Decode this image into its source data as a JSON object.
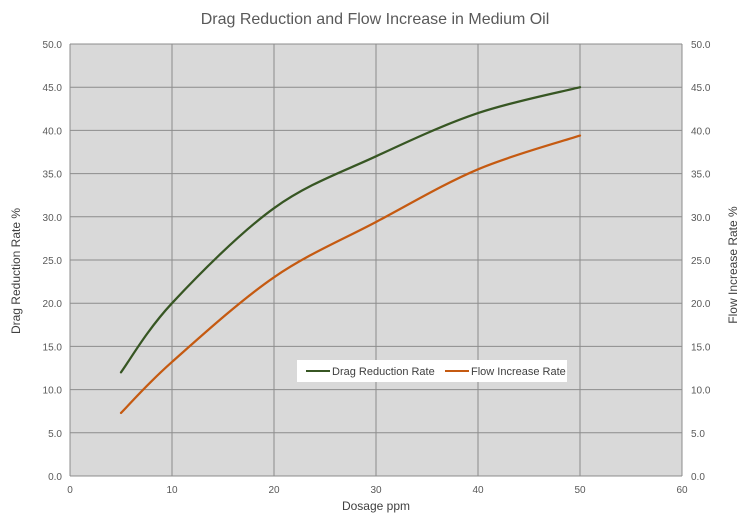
{
  "chart_data": {
    "type": "line",
    "title": "Drag Reduction and Flow Increase in Medium Oil",
    "xlabel": "Dosage  ppm",
    "ylabel": "Drag Reduction Rate  %",
    "y2label": "Flow Increase  Rate  %",
    "xlim": [
      0,
      60
    ],
    "ylim": [
      0,
      50
    ],
    "y2lim": [
      0,
      50
    ],
    "x_ticks": [
      "0",
      "10",
      "20",
      "30",
      "40",
      "50",
      "60"
    ],
    "y_ticks": [
      "0.0",
      "5.0",
      "10.0",
      "15.0",
      "20.0",
      "25.0",
      "30.0",
      "35.0",
      "40.0",
      "45.0",
      "50.0"
    ],
    "y2_ticks": [
      "0.0",
      "5.0",
      "10.0",
      "15.0",
      "20.0",
      "25.0",
      "30.0",
      "35.0",
      "40.0",
      "45.0",
      "50.0"
    ],
    "grid": true,
    "legend_position": "center-right",
    "plot_background": "#d9d9d9",
    "series": [
      {
        "name": "Drag Reduction Rate",
        "color": "#375623",
        "x": [
          5,
          10,
          20,
          30,
          40,
          50
        ],
        "y": [
          12,
          20,
          31,
          37,
          42,
          45
        ]
      },
      {
        "name": "Flow Increase Rate",
        "color": "#c55a11",
        "x": [
          5,
          10,
          20,
          30,
          40,
          50
        ],
        "y": [
          7.3,
          13.2,
          23,
          29.4,
          35.5,
          39.4
        ]
      }
    ]
  }
}
